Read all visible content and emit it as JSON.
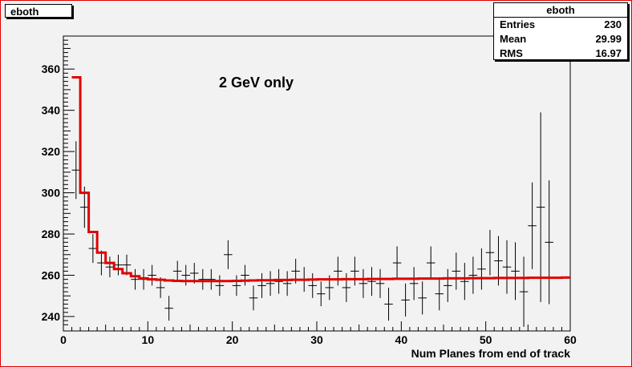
{
  "histogram": {
    "name": "eboth"
  },
  "stats": {
    "title": "eboth",
    "rows": [
      {
        "label": "Entries",
        "value": "230"
      },
      {
        "label": "Mean",
        "value": "29.99"
      },
      {
        "label": "RMS",
        "value": "16.97"
      }
    ]
  },
  "colors": {
    "fit": "#e00000",
    "data": "#000000",
    "frame": "#e00000"
  },
  "chart_data": {
    "type": "line",
    "title": "",
    "annotation": "2 GeV only",
    "xlabel": "Num Planes from end of track",
    "ylabel": "",
    "xlim": [
      0,
      60
    ],
    "ylim": [
      233,
      376
    ],
    "x_ticks": [
      0,
      10,
      20,
      30,
      40,
      50,
      60
    ],
    "y_ticks": [
      240,
      260,
      280,
      300,
      320,
      340,
      360
    ],
    "grid": false,
    "legend": "top-right",
    "series": [
      {
        "kind": "points-with-errors",
        "x": [
          1.5,
          2.5,
          3.5,
          4.5,
          5.5,
          6.5,
          7.5,
          8.5,
          9.5,
          10.5,
          11.5,
          12.5,
          13.5,
          14.5,
          15.5,
          16.5,
          17.5,
          18.5,
          19.5,
          20.5,
          21.5,
          22.5,
          23.5,
          24.5,
          25.5,
          26.5,
          27.5,
          28.5,
          29.5,
          30.5,
          31.5,
          32.5,
          33.5,
          34.5,
          35.5,
          36.5,
          37.5,
          38.5,
          39.5,
          40.5,
          41.5,
          42.5,
          43.5,
          44.5,
          45.5,
          46.5,
          47.5,
          48.5,
          49.5,
          50.5,
          51.5,
          52.5,
          53.5,
          54.5,
          55.5,
          56.5,
          57.5,
          58.5
        ],
        "y": [
          311,
          293,
          273,
          266,
          264,
          265,
          265,
          258,
          258,
          260,
          254,
          244,
          262,
          260,
          261,
          258,
          258,
          255,
          270,
          255,
          260,
          249,
          255,
          256,
          257,
          256,
          262,
          258,
          255,
          251,
          254,
          262,
          254,
          262,
          256,
          257,
          256,
          246,
          266,
          248,
          256,
          249,
          266,
          251,
          255,
          262,
          257,
          260,
          263,
          271,
          267,
          264,
          262,
          252,
          284,
          293,
          276,
          null
        ],
        "yerr": [
          14,
          10,
          7,
          6,
          5,
          5,
          5,
          5,
          5,
          5,
          5,
          6,
          5,
          5,
          5,
          5,
          5,
          5,
          7,
          5,
          5,
          6,
          6,
          6,
          6,
          6,
          6,
          6,
          6,
          6,
          6,
          7,
          7,
          7,
          7,
          7,
          7,
          8,
          8,
          8,
          8,
          8,
          8,
          8,
          8,
          9,
          9,
          9,
          10,
          11,
          12,
          13,
          14,
          17,
          21,
          46,
          30,
          null
        ]
      },
      {
        "kind": "fit-histogram",
        "x_edges": [
          1,
          2,
          3,
          4,
          5,
          6,
          7,
          8,
          9,
          10,
          11,
          12,
          13,
          14,
          15,
          16,
          17,
          18,
          19,
          20,
          21,
          22,
          23,
          24,
          25,
          26,
          27,
          28,
          29,
          30,
          31,
          32,
          33,
          34,
          35,
          36,
          37,
          38,
          39,
          40,
          41,
          42,
          43,
          44,
          45,
          46,
          47,
          48,
          49,
          50,
          51,
          52,
          53,
          54,
          55,
          56,
          57,
          58,
          59,
          60
        ],
        "values": [
          356,
          300,
          281,
          271,
          266,
          263,
          261,
          259.5,
          258.5,
          258,
          257.8,
          257.5,
          257.3,
          257.2,
          257.2,
          257.2,
          257.2,
          257.2,
          257.2,
          257.3,
          257.4,
          257.5,
          257.6,
          257.6,
          257.7,
          257.7,
          257.8,
          257.8,
          257.9,
          258,
          258,
          258,
          258.1,
          258.1,
          258.1,
          258.2,
          258.2,
          258.2,
          258.3,
          258.3,
          258.3,
          258.4,
          258.4,
          258.4,
          258.5,
          258.5,
          258.5,
          258.6,
          258.6,
          258.6,
          258.7,
          258.7,
          258.7,
          258.7,
          258.8,
          258.8,
          258.8,
          258.8,
          258.9
        ]
      }
    ]
  }
}
